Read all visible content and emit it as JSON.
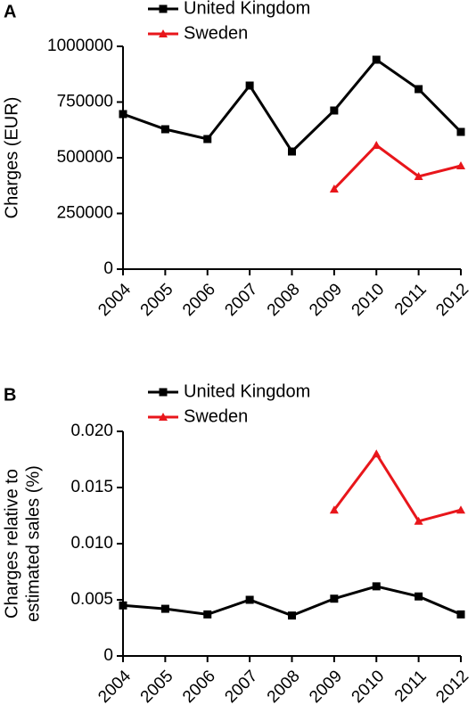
{
  "chart_data": [
    {
      "type": "line",
      "panel_label": "A",
      "ylabel": [
        "Charges (EUR)"
      ],
      "categories": [
        "2004",
        "2005",
        "2006",
        "2007",
        "2008",
        "2009",
        "2010",
        "2011",
        "2012"
      ],
      "series": [
        {
          "name": "United Kingdom",
          "color": "#000000",
          "marker": "square",
          "values": [
            696000,
            628000,
            584000,
            824000,
            528000,
            712000,
            940000,
            808000,
            616000
          ]
        },
        {
          "name": "Sweden",
          "color": "#e8161b",
          "marker": "triangle",
          "values": [
            null,
            null,
            null,
            null,
            null,
            360000,
            556000,
            416000,
            464000
          ]
        }
      ],
      "ylim": [
        0,
        1000000
      ],
      "yticks": [
        0,
        250000,
        500000,
        750000,
        1000000
      ]
    },
    {
      "type": "line",
      "panel_label": "B",
      "ylabel": [
        "Charges relative to",
        "estimated sales (%)"
      ],
      "categories": [
        "2004",
        "2005",
        "2006",
        "2007",
        "2008",
        "2009",
        "2010",
        "2011",
        "2012"
      ],
      "series": [
        {
          "name": "United Kingdom",
          "color": "#000000",
          "marker": "square",
          "values": [
            0.0045,
            0.0042,
            0.0037,
            0.005,
            0.0036,
            0.0051,
            0.0062,
            0.0053,
            0.0037
          ]
        },
        {
          "name": "Sweden",
          "color": "#e8161b",
          "marker": "triangle",
          "values": [
            null,
            null,
            null,
            null,
            null,
            0.013,
            0.018,
            0.012,
            0.013
          ]
        }
      ],
      "ylim": [
        0,
        0.02
      ],
      "yticks": [
        0,
        0.005,
        {
          "value": 0.01,
          "label": "0.010"
        },
        0.015,
        {
          "value": 0.02,
          "label": "0.020"
        }
      ]
    }
  ]
}
